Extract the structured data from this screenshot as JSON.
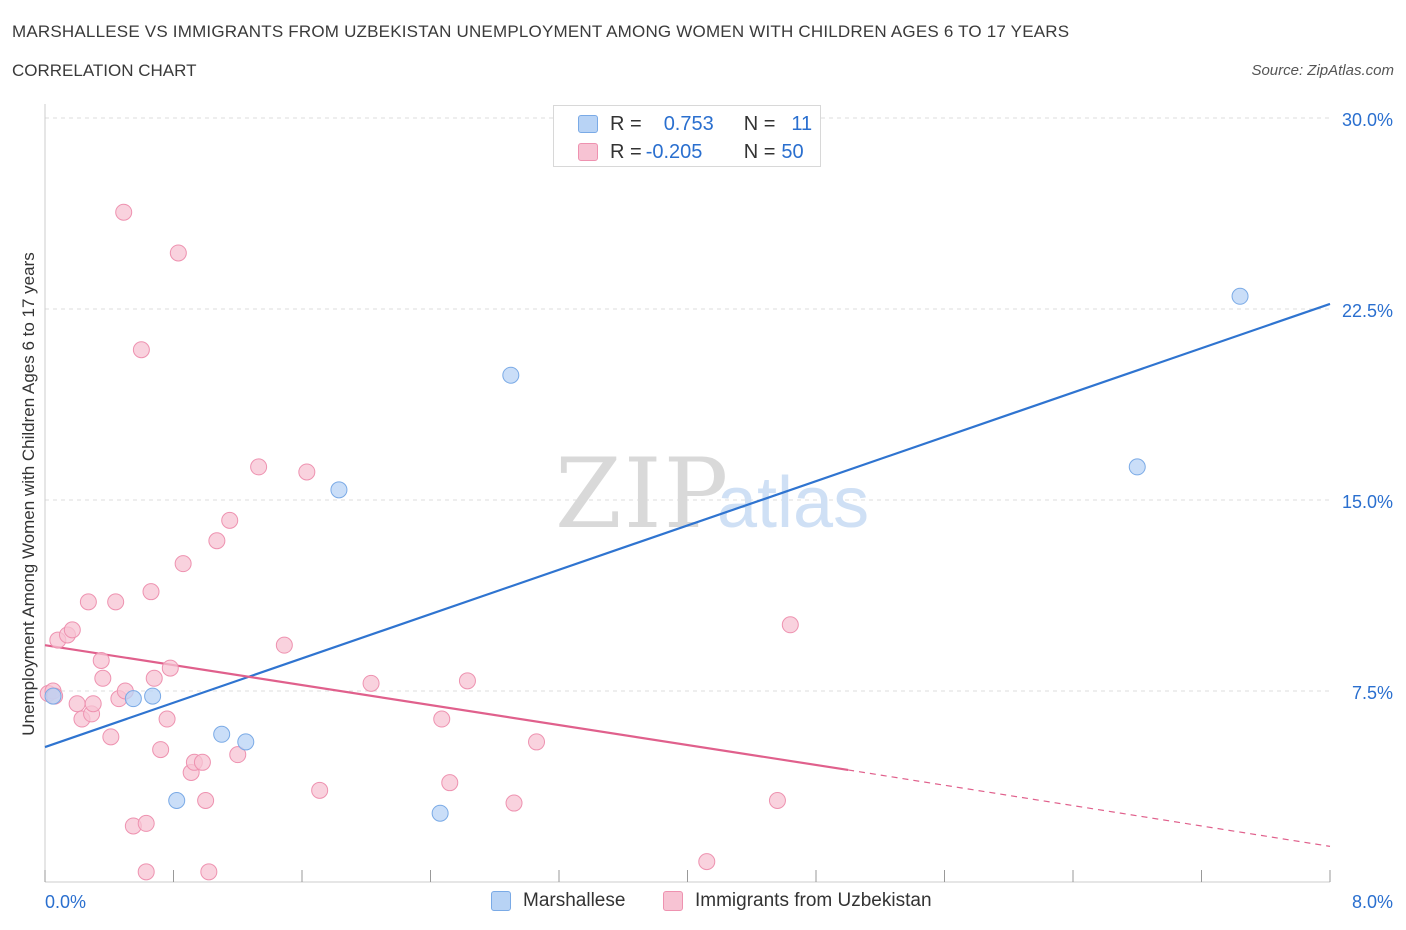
{
  "title": "MARSHALLESE VS IMMIGRANTS FROM UZBEKISTAN UNEMPLOYMENT AMONG WOMEN WITH CHILDREN AGES 6 TO 17 YEARS",
  "subtitle": "CORRELATION CHART",
  "source": "Source: ZipAtlas.com",
  "watermark": {
    "zip": "ZIP",
    "atlas": "atlas"
  },
  "colors": {
    "marshallese_fill": "#b8d3f5",
    "marshallese_stroke": "#7aaae6",
    "marshallese_line": "#2f74d0",
    "uzbek_fill": "#f7c3d3",
    "uzbek_stroke": "#ee92b0",
    "uzbek_line": "#e0608c",
    "axis_text": "#2a6fcf",
    "grid": "#dddddd"
  },
  "legend_top": {
    "rows": [
      {
        "r_label": "R =",
        "r_value": "0.753",
        "n_label": "N =",
        "n_value": "11"
      },
      {
        "r_label": "R =",
        "r_value": "-0.205",
        "n_label": "N =",
        "n_value": "50"
      }
    ]
  },
  "legend_bottom": [
    "Marshallese",
    "Immigrants from Uzbekistan"
  ],
  "chart_data": {
    "type": "scatter",
    "title": "MARSHALLESE VS IMMIGRANTS FROM UZBEKISTAN UNEMPLOYMENT AMONG WOMEN WITH CHILDREN AGES 6 TO 17 YEARS",
    "xlabel": "",
    "ylabel": "Unemployment Among Women with Children Ages 6 to 17 years",
    "xlim": [
      0,
      8
    ],
    "ylim": [
      0,
      30
    ],
    "x_tick_labels": [
      "0.0%",
      "8.0%"
    ],
    "y_tick_labels": [
      "7.5%",
      "15.0%",
      "22.5%",
      "30.0%"
    ],
    "y_ticks": [
      7.5,
      15,
      22.5,
      30
    ],
    "grid": true,
    "legend_position": "bottom",
    "series": [
      {
        "name": "Marshallese",
        "points": [
          [
            0.05,
            7.3
          ],
          [
            0.55,
            7.2
          ],
          [
            0.67,
            7.3
          ],
          [
            0.82,
            3.2
          ],
          [
            1.1,
            5.8
          ],
          [
            1.25,
            5.5
          ],
          [
            1.83,
            15.4
          ],
          [
            2.46,
            2.7
          ],
          [
            2.9,
            19.9
          ],
          [
            6.8,
            16.3
          ],
          [
            7.44,
            23.0
          ]
        ],
        "trend": {
          "x": [
            0,
            8
          ],
          "y": [
            5.3,
            22.7
          ]
        }
      },
      {
        "name": "Immigrants from Uzbekistan",
        "points": [
          [
            0.02,
            7.4
          ],
          [
            0.05,
            7.5
          ],
          [
            0.08,
            9.5
          ],
          [
            0.14,
            9.7
          ],
          [
            0.17,
            9.9
          ],
          [
            0.2,
            7.0
          ],
          [
            0.23,
            6.4
          ],
          [
            0.27,
            11.0
          ],
          [
            0.29,
            6.6
          ],
          [
            0.3,
            7.0
          ],
          [
            0.35,
            8.7
          ],
          [
            0.36,
            8.0
          ],
          [
            0.41,
            5.7
          ],
          [
            0.44,
            11.0
          ],
          [
            0.46,
            7.2
          ],
          [
            0.5,
            7.5
          ],
          [
            0.55,
            2.2
          ],
          [
            0.49,
            26.3
          ],
          [
            0.6,
            20.9
          ],
          [
            0.63,
            2.3
          ],
          [
            0.63,
            0.4
          ],
          [
            0.66,
            11.4
          ],
          [
            0.68,
            8.0
          ],
          [
            0.72,
            5.2
          ],
          [
            0.76,
            6.4
          ],
          [
            0.78,
            8.4
          ],
          [
            0.83,
            24.7
          ],
          [
            0.86,
            12.5
          ],
          [
            0.91,
            4.3
          ],
          [
            0.93,
            4.7
          ],
          [
            0.98,
            4.7
          ],
          [
            1.0,
            3.2
          ],
          [
            1.02,
            0.4
          ],
          [
            1.07,
            13.4
          ],
          [
            1.15,
            14.2
          ],
          [
            1.2,
            5.0
          ],
          [
            1.33,
            16.3
          ],
          [
            1.49,
            9.3
          ],
          [
            1.63,
            16.1
          ],
          [
            1.71,
            3.6
          ],
          [
            2.03,
            7.8
          ],
          [
            2.47,
            6.4
          ],
          [
            2.52,
            3.9
          ],
          [
            2.63,
            7.9
          ],
          [
            2.92,
            3.1
          ],
          [
            3.06,
            5.5
          ],
          [
            4.12,
            0.8
          ],
          [
            4.56,
            3.2
          ],
          [
            4.64,
            10.1
          ],
          [
            0.06,
            7.3
          ]
        ],
        "trend": {
          "x": [
            0,
            5.0
          ],
          "y": [
            9.3,
            4.4
          ]
        },
        "trend_dashed_extension": {
          "x": [
            5.0,
            8.0
          ],
          "y": [
            4.4,
            1.4
          ]
        }
      }
    ]
  }
}
